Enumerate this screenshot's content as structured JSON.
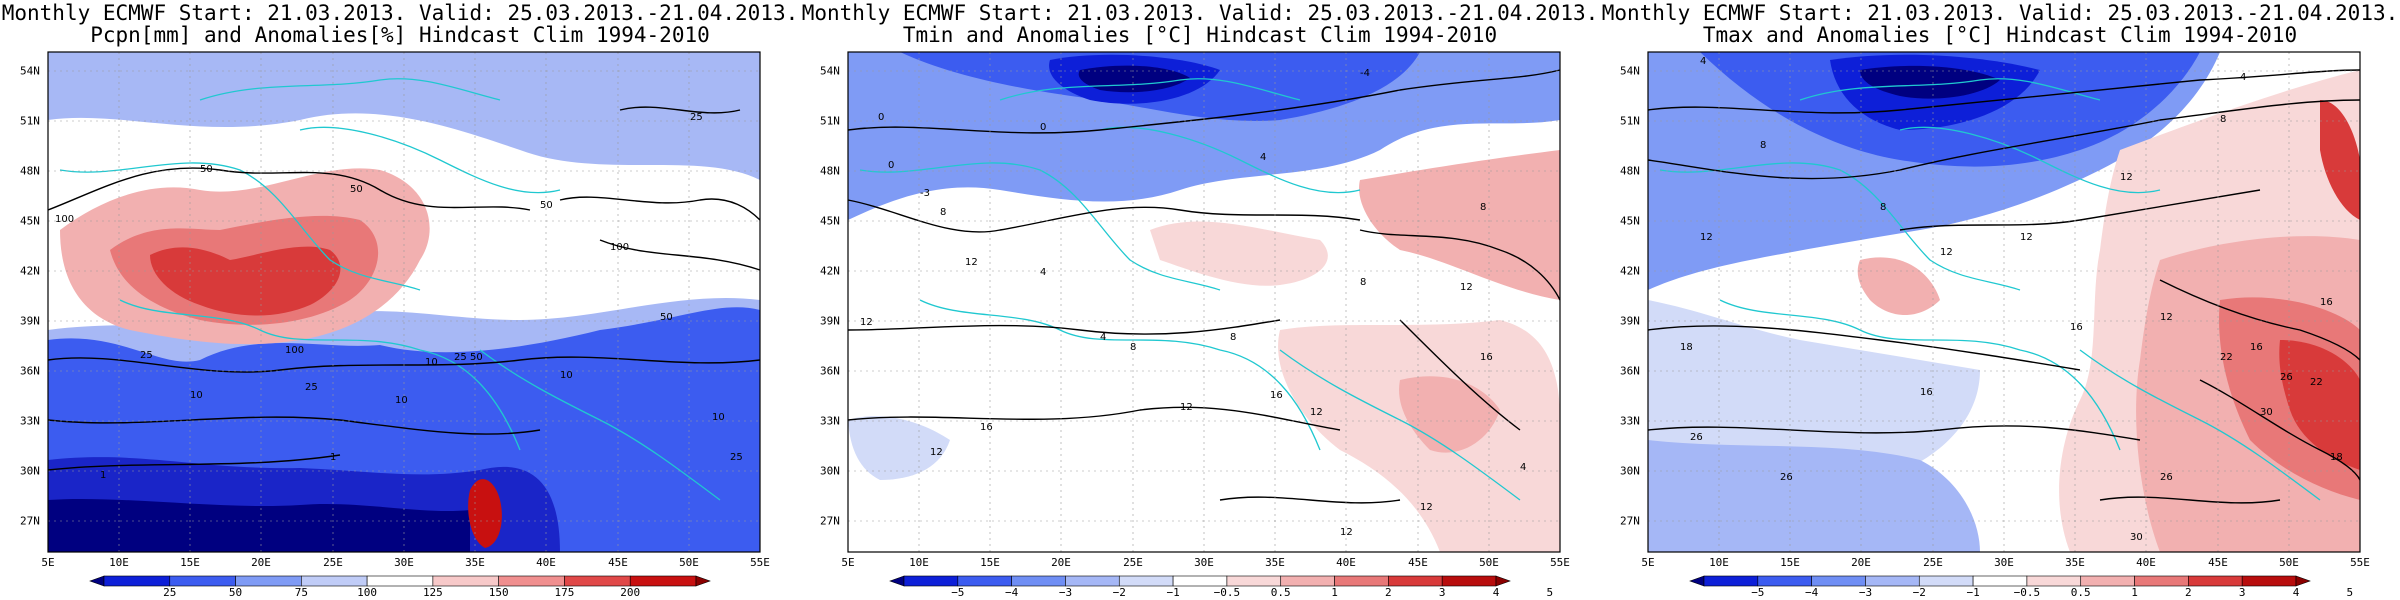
{
  "panels": [
    {
      "title1": "Monthly ECMWF Start: 21.03.2013. Valid: 25.03.2013.-21.04.2013.",
      "title2": "Pcpn[mm] and Anomalies[%] Hindcast Clim 1994-2010",
      "colorbar": {
        "labels": [
          "25",
          "50",
          "75",
          "100",
          "125",
          "150",
          "175",
          "200"
        ],
        "colors": [
          "#000080",
          "#0d1fd8",
          "#3c5cf0",
          "#7f9bf5",
          "#c0ccf7",
          "#ffffff",
          "#f7c9c9",
          "#f08f8f",
          "#e04848",
          "#c81010",
          "#8b0000"
        ]
      },
      "contours": [
        "100",
        "50",
        "25",
        "10",
        "1",
        "50",
        "100",
        "25",
        "50",
        "10",
        "25",
        "10",
        "1",
        "10",
        "50",
        "25",
        "25",
        "50",
        "100",
        "10"
      ]
    },
    {
      "title1": "Monthly ECMWF Start: 21.03.2013. Valid: 25.03.2013.-21.04.2013.",
      "title2": "Tmin and Anomalies [°C] Hindcast Clim 1994-2010",
      "colorbar": {
        "labels": [
          "−5",
          "−4",
          "−3",
          "−2",
          "−1",
          "−0.5",
          "0.5",
          "1",
          "2",
          "3",
          "4",
          "5"
        ],
        "colors": [
          "#000080",
          "#0d1fd8",
          "#3c5cf0",
          "#6f8ef4",
          "#a5b7f6",
          "#d2dbf8",
          "#ffffff",
          "#f8d8d8",
          "#f2b0b0",
          "#e87878",
          "#d83a3a",
          "#b80d0d",
          "#8b0000"
        ]
      },
      "contours": [
        "-4",
        "0",
        "0",
        "4",
        "8",
        "0",
        "-3",
        "8",
        "12",
        "12",
        "4",
        "8",
        "12",
        "16",
        "12",
        "12",
        "16",
        "4",
        "8",
        "12",
        "16",
        "12",
        "8",
        "12",
        "4"
      ]
    },
    {
      "title1": "Monthly ECMWF Start: 21.03.2013. Valid: 25.03.2013.-21.04.2013.",
      "title2": "Tmax and Anomalies [°C] Hindcast Clim 1994-2010",
      "colorbar": {
        "labels": [
          "−5",
          "−4",
          "−3",
          "−2",
          "−1",
          "−0.5",
          "0.5",
          "1",
          "2",
          "3",
          "4",
          "5"
        ],
        "colors": [
          "#000080",
          "#0d1fd8",
          "#3c5cf0",
          "#6f8ef4",
          "#a5b7f6",
          "#d2dbf8",
          "#ffffff",
          "#f8d8d8",
          "#f2b0b0",
          "#e87878",
          "#d83a3a",
          "#b80d0d",
          "#8b0000"
        ]
      },
      "contours": [
        "4",
        "4",
        "8",
        "8",
        "8",
        "12",
        "12",
        "12",
        "16",
        "12",
        "18",
        "22",
        "26",
        "16",
        "22",
        "26",
        "30",
        "18",
        "26",
        "16",
        "12",
        "16",
        "30",
        "26"
      ]
    }
  ],
  "y_ticks": [
    "54N",
    "51N",
    "48N",
    "45N",
    "42N",
    "39N",
    "36N",
    "33N",
    "30N",
    "27N"
  ],
  "x_ticks": [
    "5E",
    "10E",
    "15E",
    "20E",
    "25E",
    "30E",
    "35E",
    "40E",
    "45E",
    "50E",
    "55E"
  ]
}
